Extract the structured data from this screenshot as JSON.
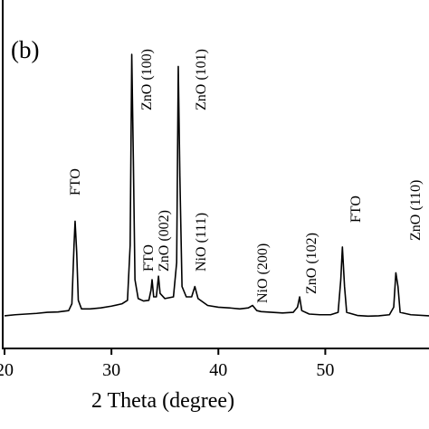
{
  "chart_data": {
    "type": "line",
    "panel_label": "(b)",
    "xlabel": "2 Theta (degree)",
    "xlim": [
      20,
      59.7
    ],
    "xticks": [
      20,
      30,
      40,
      50
    ],
    "ylim": [
      0,
      100
    ],
    "color": "#000000",
    "x": [
      20,
      21,
      22,
      23,
      24,
      25,
      26,
      26.3,
      26.5,
      26.6,
      26.75,
      26.9,
      27.2,
      28,
      29,
      30,
      31,
      31.5,
      31.75,
      31.9,
      32.05,
      32.2,
      32.5,
      33,
      33.5,
      33.7,
      33.8,
      33.95,
      34.2,
      34.4,
      34.55,
      35,
      35.8,
      36.1,
      36.25,
      36.4,
      36.6,
      37,
      37.5,
      37.8,
      38.1,
      39,
      40,
      41,
      42,
      42.8,
      43.2,
      43.6,
      44,
      45,
      46,
      47,
      47.4,
      47.6,
      47.8,
      48.5,
      49.5,
      50.5,
      51.2,
      51.45,
      51.6,
      51.8,
      52,
      53,
      54,
      55,
      56,
      56.4,
      56.6,
      56.8,
      57,
      58,
      59.7
    ],
    "values": [
      9.5,
      9.8,
      10,
      10.2,
      10.5,
      10.6,
      11,
      13,
      30,
      37,
      28,
      14,
      11.5,
      11.5,
      11.8,
      12.3,
      13,
      14,
      30,
      85.5,
      55,
      20,
      14.5,
      13.8,
      14,
      17,
      20,
      15,
      15,
      21,
      16,
      14.5,
      15,
      25,
      82,
      50,
      18,
      15,
      15,
      18,
      14.5,
      12.5,
      12,
      11.8,
      11.5,
      11.8,
      12.5,
      11,
      10.7,
      10.5,
      10.3,
      10.5,
      12,
      15,
      11,
      10,
      9.8,
      9.8,
      10.5,
      20,
      29.5,
      18,
      10.5,
      9.6,
      9.4,
      9.5,
      9.8,
      12,
      22,
      18,
      10.5,
      9.8,
      9.5
    ],
    "annotations": [
      "FTO",
      "ZnO (100)",
      "FTO",
      "ZnO (002)",
      "ZnO (101)",
      "NiO (111)",
      "NiO (200)",
      "ZnO (102)",
      "FTO",
      "ZnO (110)"
    ]
  }
}
